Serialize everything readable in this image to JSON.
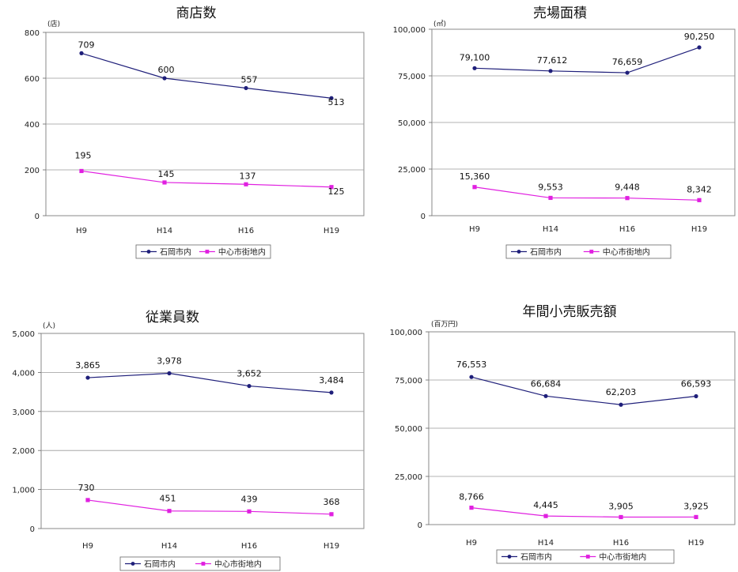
{
  "chart_data": [
    {
      "type": "line",
      "title": "商店数",
      "unit": "(店)",
      "categories": [
        "H9",
        "H14",
        "H16",
        "H19"
      ],
      "ylim": [
        0,
        800
      ],
      "yticks": [
        0,
        200,
        400,
        600,
        800
      ],
      "ytick_labels": [
        "0",
        "200",
        "400",
        "600",
        "800"
      ],
      "grid": true,
      "legend": "bottom",
      "series": [
        {
          "name": "石岡市内",
          "color": "#1f1f7a",
          "values": [
            709,
            600,
            557,
            513
          ],
          "labels": [
            "709",
            "600",
            "557",
            "513"
          ]
        },
        {
          "name": "中心市街地内",
          "color": "#e020e0",
          "values": [
            195,
            145,
            137,
            125
          ],
          "labels": [
            "195",
            "145",
            "137",
            "125"
          ]
        }
      ]
    },
    {
      "type": "line",
      "title": "売場面積",
      "unit": "(㎡)",
      "categories": [
        "H9",
        "H14",
        "H16",
        "H19"
      ],
      "ylim": [
        0,
        100000
      ],
      "yticks": [
        0,
        25000,
        50000,
        75000,
        100000
      ],
      "ytick_labels": [
        "0",
        "25,000",
        "50,000",
        "75,000",
        "100,000"
      ],
      "grid": true,
      "legend": "bottom",
      "series": [
        {
          "name": "石岡市内",
          "color": "#1f1f7a",
          "values": [
            79100,
            77612,
            76659,
            90250
          ],
          "labels": [
            "79,100",
            "77,612",
            "76,659",
            "90,250"
          ]
        },
        {
          "name": "中心市街地内",
          "color": "#e020e0",
          "values": [
            15360,
            9553,
            9448,
            8342
          ],
          "labels": [
            "15,360",
            "9,553",
            "9,448",
            "8,342"
          ]
        }
      ]
    },
    {
      "type": "line",
      "title": "従業員数",
      "unit": "(人)",
      "categories": [
        "H9",
        "H14",
        "H16",
        "H19"
      ],
      "ylim": [
        0,
        5000
      ],
      "yticks": [
        0,
        1000,
        2000,
        3000,
        4000,
        5000
      ],
      "ytick_labels": [
        "0",
        "1,000",
        "2,000",
        "3,000",
        "4,000",
        "5,000"
      ],
      "grid": true,
      "legend": "bottom",
      "series": [
        {
          "name": "石岡市内",
          "color": "#1f1f7a",
          "values": [
            3865,
            3978,
            3652,
            3484
          ],
          "labels": [
            "3,865",
            "3,978",
            "3,652",
            "3,484"
          ]
        },
        {
          "name": "中心市街地内",
          "color": "#e020e0",
          "values": [
            730,
            451,
            439,
            368
          ],
          "labels": [
            "730",
            "451",
            "439",
            "368"
          ]
        }
      ]
    },
    {
      "type": "line",
      "title": "年間小売販売額",
      "unit": "(百万円)",
      "categories": [
        "H9",
        "H14",
        "H16",
        "H19"
      ],
      "ylim": [
        0,
        100000
      ],
      "yticks": [
        0,
        25000,
        50000,
        75000,
        100000
      ],
      "ytick_labels": [
        "0",
        "25,000",
        "50,000",
        "75,000",
        "100,000"
      ],
      "grid": true,
      "legend": "bottom",
      "series": [
        {
          "name": "石岡市内",
          "color": "#1f1f7a",
          "values": [
            76553,
            66684,
            62203,
            66593
          ],
          "labels": [
            "76,553",
            "66,684",
            "62,203",
            "66,593"
          ]
        },
        {
          "name": "中心市街地内",
          "color": "#e020e0",
          "values": [
            8766,
            4445,
            3905,
            3925
          ],
          "labels": [
            "8,766",
            "4,445",
            "3,905",
            "3,925"
          ]
        }
      ]
    }
  ]
}
